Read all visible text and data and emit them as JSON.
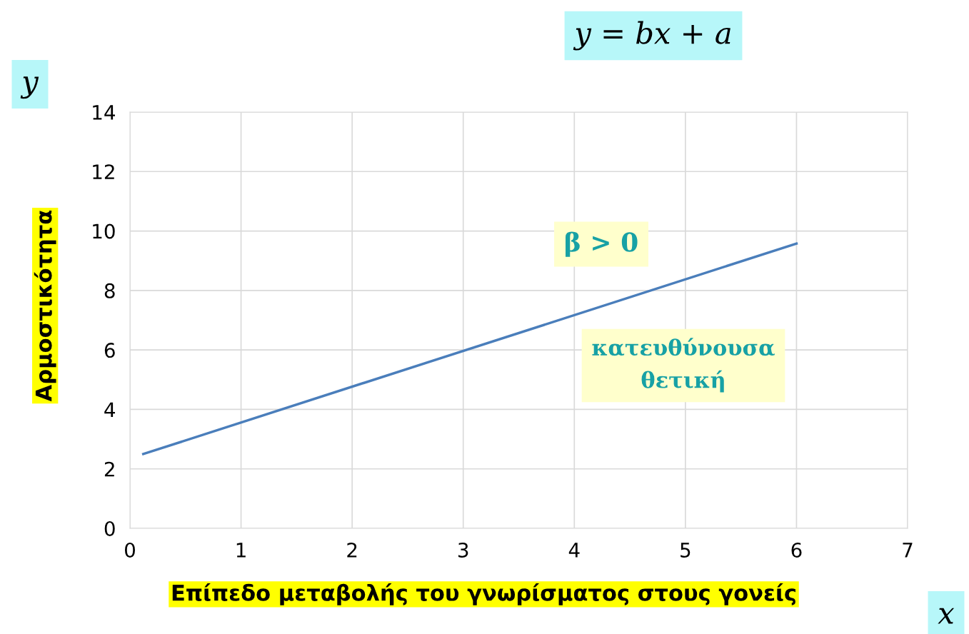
{
  "chart_data": {
    "type": "line",
    "x": [
      0.12,
      6
    ],
    "series": [
      {
        "color": "#4a7ebb",
        "values": [
          2.5,
          9.58
        ]
      }
    ],
    "xlabel": "Επίπεδο μεταβολής του γνωρίσματος στους γονείς",
    "ylabel": "Αρμοστικότητα",
    "xlim": [
      0,
      7
    ],
    "xticks": [
      0,
      1,
      2,
      3,
      4,
      5,
      6,
      7
    ],
    "ylim": [
      0,
      14
    ],
    "yticks": [
      0,
      2,
      4,
      6,
      8,
      10,
      12,
      14
    ],
    "grid": true,
    "marker": "none",
    "line_style": "solid",
    "annotations": [
      "y = bx + a",
      "y",
      "x",
      "β > 0",
      "κατευθύνουσα\nθετική"
    ]
  }
}
